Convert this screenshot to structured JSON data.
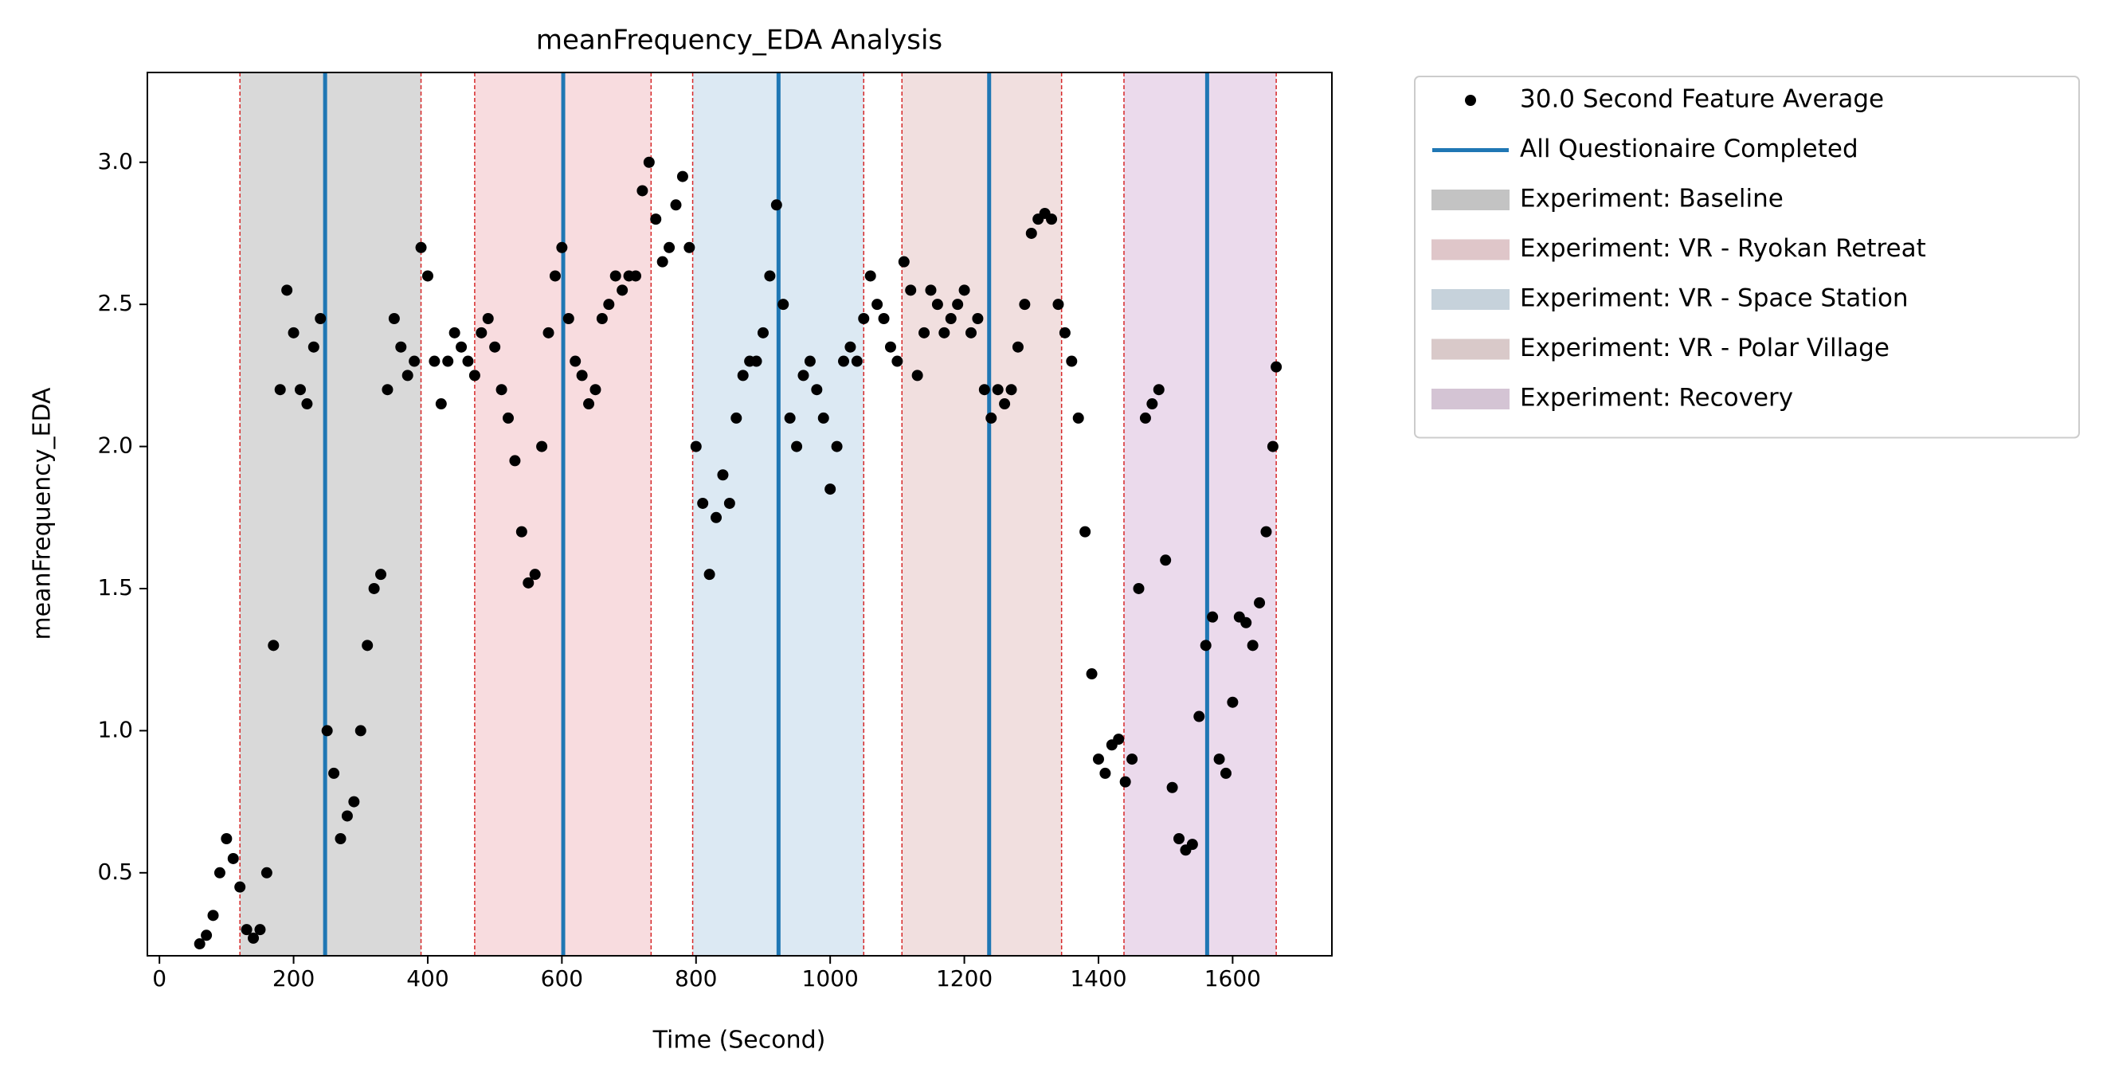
{
  "chart_data": {
    "type": "scatter",
    "title": "meanFrequency_EDA Analysis",
    "xlabel": "Time (Second)",
    "ylabel": "meanFrequency_EDA",
    "x": [
      60,
      70,
      80,
      90,
      100,
      110,
      120,
      130,
      140,
      150,
      160,
      170,
      180,
      190,
      200,
      210,
      220,
      230,
      240,
      250,
      260,
      270,
      280,
      290,
      300,
      310,
      320,
      330,
      340,
      350,
      360,
      370,
      380,
      390,
      400,
      410,
      420,
      430,
      440,
      450,
      460,
      470,
      480,
      490,
      500,
      510,
      520,
      530,
      540,
      550,
      560,
      570,
      580,
      590,
      600,
      610,
      620,
      630,
      640,
      650,
      660,
      670,
      680,
      690,
      700,
      710,
      720,
      730,
      740,
      750,
      760,
      770,
      780,
      790,
      800,
      810,
      820,
      830,
      840,
      850,
      860,
      870,
      880,
      890,
      900,
      910,
      920,
      930,
      940,
      950,
      960,
      970,
      980,
      990,
      1000,
      1010,
      1020,
      1030,
      1040,
      1050,
      1060,
      1070,
      1080,
      1090,
      1100,
      1110,
      1120,
      1130,
      1140,
      1150,
      1160,
      1170,
      1180,
      1190,
      1200,
      1210,
      1220,
      1230,
      1240,
      1250,
      1260,
      1270,
      1280,
      1290,
      1300,
      1310,
      1320,
      1330,
      1340,
      1350,
      1360,
      1370,
      1380,
      1390,
      1400,
      1410,
      1420,
      1430,
      1440,
      1450,
      1460,
      1470,
      1480,
      1490,
      1500,
      1510,
      1520,
      1530,
      1540,
      1550,
      1560,
      1570,
      1580,
      1590,
      1600,
      1610,
      1620,
      1630,
      1640,
      1650,
      1660,
      1665
    ],
    "series": [
      {
        "name": "30.0 Second Feature Average",
        "color": "#000000",
        "values": [
          0.25,
          0.28,
          0.35,
          0.5,
          0.62,
          0.55,
          0.45,
          0.3,
          0.27,
          0.3,
          0.5,
          1.3,
          2.2,
          2.55,
          2.4,
          2.2,
          2.15,
          2.35,
          2.45,
          1.0,
          0.85,
          0.62,
          0.7,
          0.75,
          1.0,
          1.3,
          1.5,
          1.55,
          2.2,
          2.45,
          2.35,
          2.25,
          2.3,
          2.7,
          2.6,
          2.3,
          2.15,
          2.3,
          2.4,
          2.35,
          2.3,
          2.25,
          2.4,
          2.45,
          2.35,
          2.2,
          2.1,
          1.95,
          1.7,
          1.52,
          1.55,
          2.0,
          2.4,
          2.6,
          2.7,
          2.45,
          2.3,
          2.25,
          2.15,
          2.2,
          2.45,
          2.5,
          2.6,
          2.55,
          2.6,
          2.6,
          2.9,
          3.0,
          2.8,
          2.65,
          2.7,
          2.85,
          2.95,
          2.7,
          2.0,
          1.8,
          1.55,
          1.75,
          1.9,
          1.8,
          2.1,
          2.25,
          2.3,
          2.3,
          2.4,
          2.6,
          2.85,
          2.5,
          2.1,
          2.0,
          2.25,
          2.3,
          2.2,
          2.1,
          1.85,
          2.0,
          2.3,
          2.35,
          2.3,
          2.45,
          2.6,
          2.5,
          2.45,
          2.35,
          2.3,
          2.65,
          2.55,
          2.25,
          2.4,
          2.55,
          2.5,
          2.4,
          2.45,
          2.5,
          2.55,
          2.4,
          2.45,
          2.2,
          2.1,
          2.2,
          2.15,
          2.2,
          2.35,
          2.5,
          2.75,
          2.8,
          2.82,
          2.8,
          2.5,
          2.4,
          2.3,
          2.1,
          1.7,
          1.2,
          0.9,
          0.85,
          0.95,
          0.97,
          0.82,
          0.9,
          1.5,
          2.1,
          2.15,
          2.2,
          1.6,
          0.8,
          0.62,
          0.58,
          0.6,
          1.05,
          1.3,
          1.4,
          0.9,
          0.85,
          1.1,
          1.4,
          1.38,
          1.3,
          1.45,
          1.7,
          2.0,
          2.28
        ]
      }
    ],
    "vlines": {
      "name": "All Questionaire Completed",
      "color": "#1f77b4",
      "x": [
        247,
        602,
        923,
        1237,
        1562
      ]
    },
    "spans": [
      {
        "name": "Experiment: Baseline",
        "color": "#d9d9d9",
        "start": 120,
        "end": 390
      },
      {
        "name": "Experiment: VR - Ryokan Retreat",
        "color": "#f8dcdf",
        "start": 470,
        "end": 733
      },
      {
        "name": "Experiment: VR - Space Station",
        "color": "#dce9f3",
        "start": 795,
        "end": 1050
      },
      {
        "name": "Experiment: VR - Polar Village",
        "color": "#f1dfdf",
        "start": 1107,
        "end": 1345
      },
      {
        "name": "Experiment: Recovery",
        "color": "#ebdaec",
        "start": 1438,
        "end": 1665
      }
    ],
    "span_edge_color": "#d62728",
    "xlim": [
      -18,
      1748
    ],
    "ylim": [
      0.208,
      3.316
    ],
    "xticks": [
      0,
      200,
      400,
      600,
      800,
      1000,
      1200,
      1400,
      1600
    ],
    "yticks": [
      0.5,
      {
        "value": 1,
        "label": "1.0"
      },
      1.5,
      {
        "value": 2,
        "label": "2.0"
      },
      2.5,
      {
        "value": 3,
        "label": "3.0"
      }
    ],
    "legend": "outside-upper-right"
  }
}
